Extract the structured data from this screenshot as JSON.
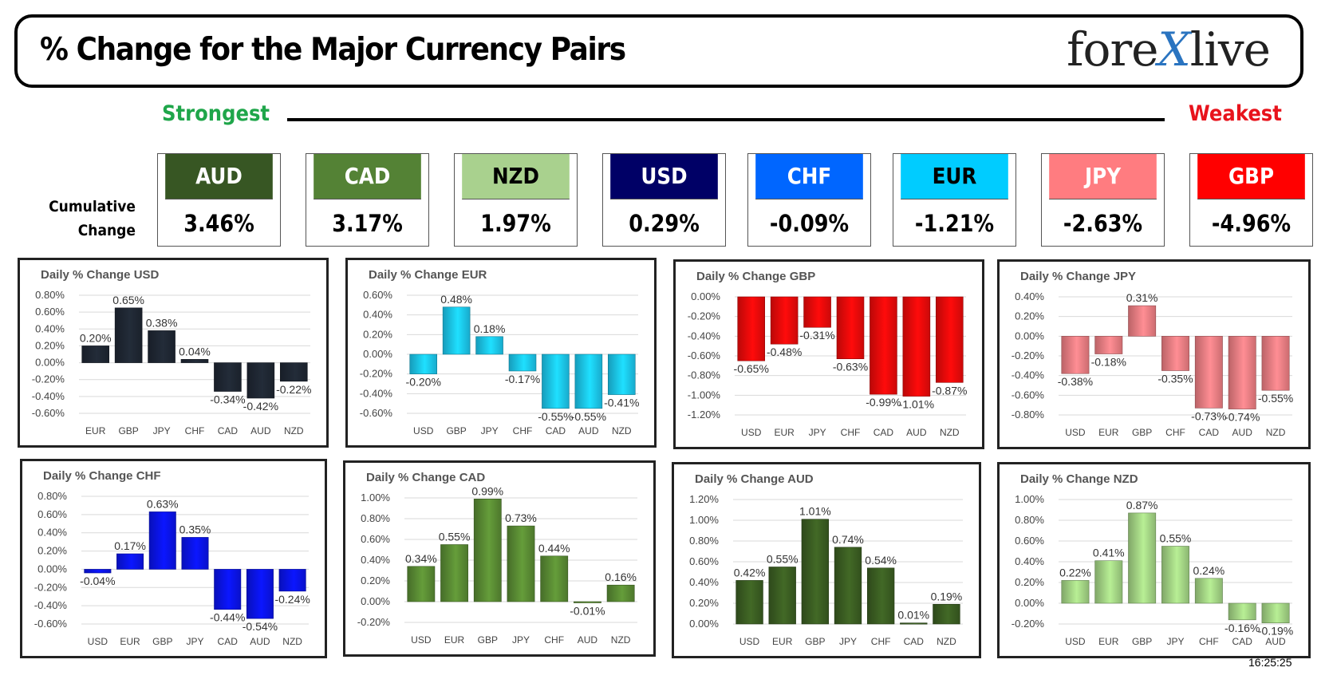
{
  "header": {
    "title": "% Change for the Major Currency Pairs",
    "logo_left": "fore",
    "logo_x": "X",
    "logo_right": "live"
  },
  "strength_scale": {
    "strongest_label": "Strongest",
    "weakest_label": "Weakest",
    "strongest_color": "#1fa64a",
    "weakest_color": "#e8131c"
  },
  "cumulative": {
    "label_line1": "Cumulative",
    "label_line2": "Change",
    "items": [
      {
        "code": "AUD",
        "value": "3.46%",
        "bg": "#375623",
        "fg": "#ffffff"
      },
      {
        "code": "CAD",
        "value": "3.17%",
        "bg": "#548235",
        "fg": "#ffffff"
      },
      {
        "code": "NZD",
        "value": "1.97%",
        "bg": "#a9d18e",
        "fg": "#000000"
      },
      {
        "code": "USD",
        "value": "0.29%",
        "bg": "#000066",
        "fg": "#ffffff"
      },
      {
        "code": "CHF",
        "value": "-0.09%",
        "bg": "#0066ff",
        "fg": "#ffffff"
      },
      {
        "code": "EUR",
        "value": "-1.21%",
        "bg": "#00ccff",
        "fg": "#000000"
      },
      {
        "code": "JPY",
        "value": "-2.63%",
        "bg": "#ff7c80",
        "fg": "#ffffff"
      },
      {
        "code": "GBP",
        "value": "-4.96%",
        "bg": "#ff0000",
        "fg": "#ffffff"
      }
    ]
  },
  "chart_data": [
    {
      "type": "bar",
      "title": "Daily % Change USD",
      "color": "#1f2733",
      "categories": [
        "EUR",
        "GBP",
        "JPY",
        "CHF",
        "CAD",
        "AUD",
        "NZD"
      ],
      "values": [
        0.2,
        0.65,
        0.38,
        0.04,
        -0.34,
        -0.42,
        -0.22
      ],
      "labels": [
        "0.20%",
        "0.65%",
        "0.38%",
        "0.04%",
        "-0.34%",
        "-0.42%",
        "-0.22%"
      ],
      "yticks": [
        "0.80%",
        "0.60%",
        "0.40%",
        "0.20%",
        "0.00%",
        "-0.20%",
        "-0.40%",
        "-0.60%"
      ],
      "ylim": [
        -0.6,
        0.8
      ]
    },
    {
      "type": "bar",
      "title": "Daily % Change EUR",
      "color": "#1cc8f0",
      "categories": [
        "USD",
        "GBP",
        "JPY",
        "CHF",
        "CAD",
        "AUD",
        "NZD"
      ],
      "values": [
        -0.2,
        0.48,
        0.18,
        -0.17,
        -0.55,
        -0.55,
        -0.41
      ],
      "labels": [
        "-0.20%",
        "0.48%",
        "0.18%",
        "-0.17%",
        "-0.55%",
        "-0.55%",
        "-0.41%"
      ],
      "yticks": [
        "0.60%",
        "0.40%",
        "0.20%",
        "0.00%",
        "-0.20%",
        "-0.40%",
        "-0.60%"
      ],
      "ylim": [
        -0.6,
        0.6
      ]
    },
    {
      "type": "bar",
      "title": "Daily % Change GBP",
      "color": "#ee0a0a",
      "categories": [
        "USD",
        "EUR",
        "JPY",
        "CHF",
        "CAD",
        "AUD",
        "NZD"
      ],
      "values": [
        -0.65,
        -0.48,
        -0.31,
        -0.63,
        -0.99,
        -1.01,
        -0.87
      ],
      "labels": [
        "-0.65%",
        "-0.48%",
        "-0.31%",
        "-0.63%",
        "-0.99%",
        "-1.01%",
        "-0.87%"
      ],
      "yticks": [
        "0.00%",
        "-0.20%",
        "-0.40%",
        "-0.60%",
        "-0.80%",
        "-1.00%",
        "-1.20%"
      ],
      "ylim": [
        -1.2,
        0.0
      ]
    },
    {
      "type": "bar",
      "title": "Daily % Change JPY",
      "color": "#f07f84",
      "categories": [
        "USD",
        "EUR",
        "GBP",
        "CHF",
        "CAD",
        "AUD",
        "NZD"
      ],
      "values": [
        -0.38,
        -0.18,
        0.31,
        -0.35,
        -0.73,
        -0.74,
        -0.55
      ],
      "labels": [
        "-0.38%",
        "-0.18%",
        "0.31%",
        "-0.35%",
        "-0.73%",
        "-0.74%",
        "-0.55%"
      ],
      "yticks": [
        "0.40%",
        "0.20%",
        "0.00%",
        "-0.20%",
        "-0.40%",
        "-0.60%",
        "-0.80%"
      ],
      "ylim": [
        -0.8,
        0.4
      ]
    },
    {
      "type": "bar",
      "title": "Daily % Change CHF",
      "color": "#0a14ee",
      "categories": [
        "USD",
        "EUR",
        "GBP",
        "JPY",
        "CAD",
        "AUD",
        "NZD"
      ],
      "values": [
        -0.04,
        0.17,
        0.63,
        0.35,
        -0.44,
        -0.54,
        -0.24
      ],
      "labels": [
        "-0.04%",
        "0.17%",
        "0.63%",
        "0.35%",
        "-0.44%",
        "-0.54%",
        "-0.24%"
      ],
      "yticks": [
        "0.80%",
        "0.60%",
        "0.40%",
        "0.20%",
        "0.00%",
        "-0.20%",
        "-0.40%",
        "-0.60%"
      ],
      "ylim": [
        -0.6,
        0.8
      ]
    },
    {
      "type": "bar",
      "title": "Daily % Change CAD",
      "color": "#5a8c34",
      "categories": [
        "USD",
        "EUR",
        "GBP",
        "JPY",
        "CHF",
        "AUD",
        "NZD"
      ],
      "values": [
        0.34,
        0.55,
        0.99,
        0.73,
        0.44,
        -0.01,
        0.16
      ],
      "labels": [
        "0.34%",
        "0.55%",
        "0.99%",
        "0.73%",
        "0.44%",
        "-0.01%",
        "0.16%"
      ],
      "yticks": [
        "1.00%",
        "0.80%",
        "0.60%",
        "0.40%",
        "0.20%",
        "0.00%",
        "-0.20%"
      ],
      "ylim": [
        -0.2,
        1.0
      ]
    },
    {
      "type": "bar",
      "title": "Daily % Change AUD",
      "color": "#3b5e22",
      "categories": [
        "USD",
        "EUR",
        "GBP",
        "JPY",
        "CHF",
        "CAD",
        "NZD"
      ],
      "values": [
        0.42,
        0.55,
        1.01,
        0.74,
        0.54,
        0.01,
        0.19
      ],
      "labels": [
        "0.42%",
        "0.55%",
        "1.01%",
        "0.74%",
        "0.54%",
        "0.01%",
        "0.19%"
      ],
      "yticks": [
        "1.20%",
        "1.00%",
        "0.80%",
        "0.60%",
        "0.40%",
        "0.20%",
        "0.00%"
      ],
      "ylim": [
        0.0,
        1.2
      ]
    },
    {
      "type": "bar",
      "title": "Daily % Change NZD",
      "color": "#a4d585",
      "categories": [
        "USD",
        "EUR",
        "GBP",
        "JPY",
        "CHF",
        "CAD",
        "AUD"
      ],
      "values": [
        0.22,
        0.41,
        0.87,
        0.55,
        0.24,
        -0.16,
        -0.19
      ],
      "labels": [
        "0.22%",
        "0.41%",
        "0.87%",
        "0.55%",
        "0.24%",
        "-0.16%",
        "-0.19%"
      ],
      "yticks": [
        "1.00%",
        "0.80%",
        "0.60%",
        "0.40%",
        "0.20%",
        "0.00%",
        "-0.20%"
      ],
      "ylim": [
        -0.2,
        1.0
      ]
    }
  ],
  "timestamp": "16:25:25"
}
